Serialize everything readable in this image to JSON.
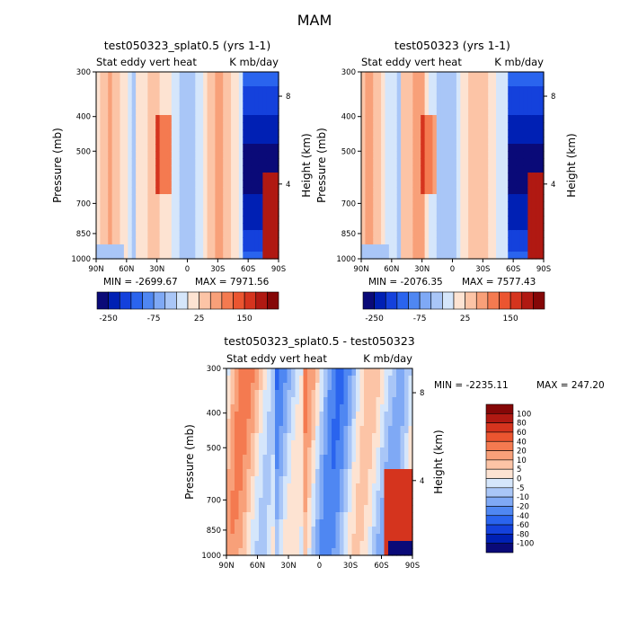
{
  "page_title": "MAM",
  "chart_data": [
    {
      "type": "heatmap",
      "title": "test050323_splat0.5 (yrs 1-1)",
      "left_subtitle": "Stat eddy vert heat",
      "right_subtitle": "K mb/day",
      "xlabel": "",
      "ylabel": "Pressure (mb)",
      "ylabel_right": "Height (km)",
      "x_ticks": [
        "90N",
        "60N",
        "30N",
        "0",
        "30S",
        "60S",
        "90S"
      ],
      "y_ticks": [
        "300",
        "400",
        "500",
        "700",
        "850",
        "1000"
      ],
      "y_right_ticks": [
        "8",
        "4"
      ],
      "min_label": "MIN = -2699.67",
      "max_label": "MAX = 7971.56",
      "colorbar_labels": [
        "-250",
        "-75",
        "25",
        "150"
      ]
    },
    {
      "type": "heatmap",
      "title": "test050323 (yrs 1-1)",
      "left_subtitle": "Stat eddy vert heat",
      "right_subtitle": "K mb/day",
      "xlabel": "",
      "ylabel": "Pressure (mb)",
      "ylabel_right": "Height (km)",
      "x_ticks": [
        "90N",
        "60N",
        "30N",
        "0",
        "30S",
        "60S",
        "90S"
      ],
      "y_ticks": [
        "300",
        "400",
        "500",
        "700",
        "850",
        "1000"
      ],
      "y_right_ticks": [
        "8",
        "4"
      ],
      "min_label": "MIN = -2076.35",
      "max_label": "MAX = 7577.43",
      "colorbar_labels": [
        "-250",
        "-75",
        "25",
        "150"
      ]
    },
    {
      "type": "heatmap",
      "title": "test050323_splat0.5 - test050323",
      "left_subtitle": "Stat eddy vert heat",
      "right_subtitle": "K mb/day",
      "xlabel": "",
      "ylabel": "Pressure (mb)",
      "ylabel_right": "Height (km)",
      "x_ticks": [
        "90N",
        "60N",
        "30N",
        "0",
        "30S",
        "60S",
        "90S"
      ],
      "y_ticks": [
        "300",
        "400",
        "500",
        "700",
        "850",
        "1000"
      ],
      "y_right_ticks": [
        "8",
        "4"
      ],
      "min_label": "MIN = -2235.11",
      "max_label": "MAX = 247.20",
      "colorbar_labels": [
        "100",
        "80",
        "60",
        "40",
        "20",
        "10",
        "5",
        "0",
        "-5",
        "-10",
        "-20",
        "-40",
        "-60",
        "-80",
        "-100"
      ]
    }
  ],
  "palette": {
    "top_colorbar": [
      "#0a0a78",
      "#0020b4",
      "#1441dc",
      "#2a64ee",
      "#4f87f2",
      "#7fa9f5",
      "#a9c6f7",
      "#d5e6fb",
      "#fde3d2",
      "#fcc4a6",
      "#f8a079",
      "#f47a50",
      "#eb5530",
      "#d5341e",
      "#b01912",
      "#850707"
    ],
    "diff_colorbar": [
      "#850707",
      "#b01912",
      "#d5341e",
      "#eb5530",
      "#f47a50",
      "#f8a079",
      "#fcc4a6",
      "#fde3d2",
      "#d5e6fb",
      "#a9c6f7",
      "#7fa9f5",
      "#4f87f2",
      "#2a64ee",
      "#1441dc",
      "#0020b4",
      "#0a0a78"
    ]
  }
}
